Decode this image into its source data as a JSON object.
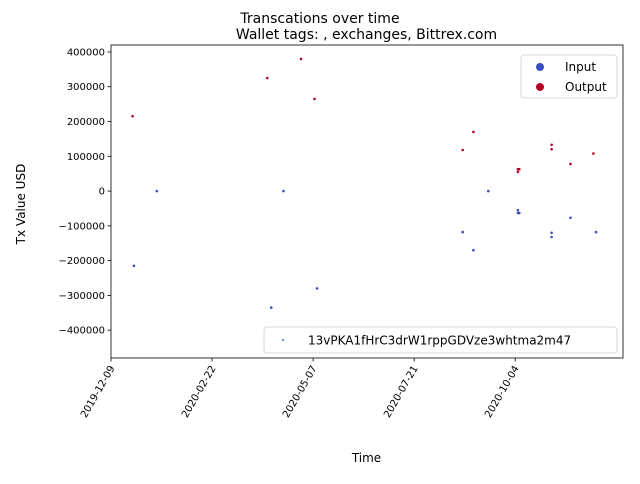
{
  "chart_data": {
    "type": "scatter",
    "suptitle": "Transcations over time",
    "title": "Wallet tags: , exchanges, Bittrex.com",
    "xlabel": "Time",
    "ylabel": "Tx Value USD",
    "xlim": [
      "2019-12-09",
      "2020-12-23"
    ],
    "ylim": [
      -480000,
      420000
    ],
    "x_ticks": [
      "2019-12-09",
      "2020-02-22",
      "2020-05-07",
      "2020-07-21",
      "2020-10-04"
    ],
    "y_ticks": [
      -400000,
      -300000,
      -200000,
      -100000,
      0,
      100000,
      200000,
      300000,
      400000
    ],
    "y_tick_labels": [
      "−400000",
      "−300000",
      "−200000",
      "−100000",
      "0",
      "100000",
      "200000",
      "300000",
      "400000"
    ],
    "grid": false,
    "colors": {
      "input": "#3b4cc0",
      "output": "#b40426"
    },
    "legend_type": {
      "placement": "top-right",
      "entries": [
        {
          "label": "Input",
          "color": "#3b4cc0"
        },
        {
          "label": "Output",
          "color": "#b40426"
        }
      ]
    },
    "legend_wallet": {
      "placement": "bottom-right",
      "entries": [
        {
          "label": "13vPKA1fHrC3drW1rppGDVze3whtma2m47",
          "color": "#1f77b4"
        }
      ]
    },
    "series": [
      {
        "name": "Input",
        "color": "#3b4cc0",
        "points": [
          {
            "x": "2019-12-26",
            "y": -215000
          },
          {
            "x": "2020-01-12",
            "y": 0
          },
          {
            "x": "2020-04-06",
            "y": -335000
          },
          {
            "x": "2020-04-15",
            "y": 0
          },
          {
            "x": "2020-05-10",
            "y": -280000
          },
          {
            "x": "2020-08-26",
            "y": -118000
          },
          {
            "x": "2020-09-03",
            "y": -170000
          },
          {
            "x": "2020-09-14",
            "y": 0
          },
          {
            "x": "2020-10-06",
            "y": -55000
          },
          {
            "x": "2020-10-06",
            "y": -63000
          },
          {
            "x": "2020-10-07",
            "y": -63000
          },
          {
            "x": "2020-10-31",
            "y": -120000
          },
          {
            "x": "2020-10-31",
            "y": -132000
          },
          {
            "x": "2020-11-14",
            "y": -77000
          },
          {
            "x": "2020-12-03",
            "y": -118000
          }
        ]
      },
      {
        "name": "Output",
        "color": "#b40426",
        "points": [
          {
            "x": "2019-12-25",
            "y": 215000
          },
          {
            "x": "2020-04-03",
            "y": 325000
          },
          {
            "x": "2020-04-28",
            "y": 380000
          },
          {
            "x": "2020-05-08",
            "y": 265000
          },
          {
            "x": "2020-08-26",
            "y": 118000
          },
          {
            "x": "2020-09-03",
            "y": 170000
          },
          {
            "x": "2020-10-06",
            "y": 63000
          },
          {
            "x": "2020-10-06",
            "y": 55000
          },
          {
            "x": "2020-10-07",
            "y": 63000
          },
          {
            "x": "2020-10-31",
            "y": 133000
          },
          {
            "x": "2020-10-31",
            "y": 120000
          },
          {
            "x": "2020-11-14",
            "y": 78000
          },
          {
            "x": "2020-12-01",
            "y": 108000
          }
        ]
      }
    ]
  }
}
